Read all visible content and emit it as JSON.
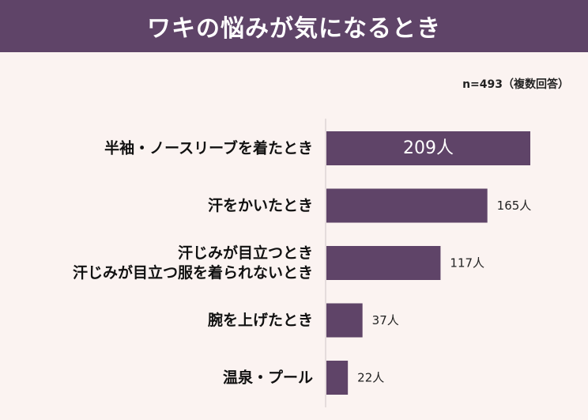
{
  "title": "ワキの悩みが気になるとき",
  "note": "n=493（複数回答）",
  "colors": {
    "header": "#5f4468",
    "bar": "#5f4468",
    "background": "#fbf3f1",
    "axis": "#cfc6c8"
  },
  "chart_data": {
    "type": "bar",
    "orientation": "horizontal",
    "categories": [
      [
        "半袖・ノースリーブを着たとき"
      ],
      [
        "汗をかいたとき"
      ],
      [
        "汗じみが目立つとき",
        "汗じみが目立つ服を着られないとき"
      ],
      [
        "腕を上げたとき"
      ],
      [
        "温泉・プール"
      ]
    ],
    "values": [
      209,
      165,
      117,
      37,
      22
    ],
    "value_labels": [
      "209人",
      "165人",
      "117人",
      "37人",
      "22人"
    ],
    "xlim": [
      0,
      209
    ],
    "grid": false,
    "legend": "none"
  }
}
